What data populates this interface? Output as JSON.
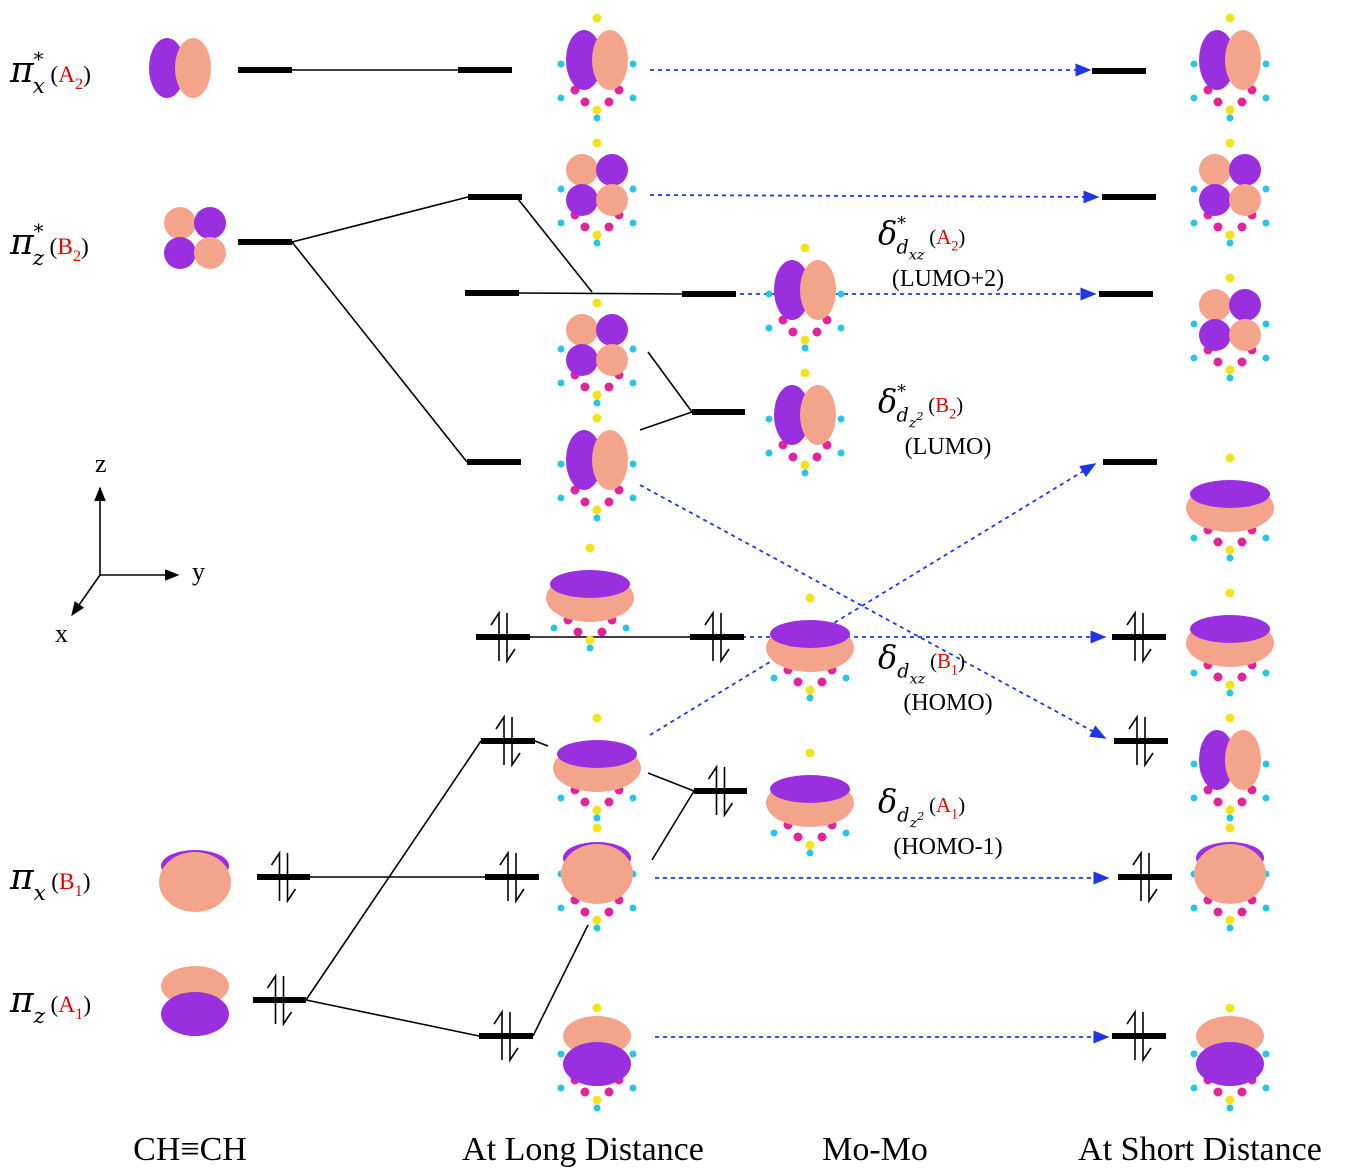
{
  "orbital_labels": [
    {
      "symbol": "π",
      "sup": "*",
      "sub": "x",
      "open": "(",
      "irrep": "A",
      "irrep_sub": "2",
      "close": ")"
    },
    {
      "symbol": "π",
      "sup": "*",
      "sub": "z",
      "open": "(",
      "irrep": "B",
      "irrep_sub": "2",
      "close": ")"
    },
    {
      "symbol": "π",
      "sub": "x",
      "open": "(",
      "irrep": "B",
      "irrep_sub": "1",
      "close": ")"
    },
    {
      "symbol": "π",
      "sub": "z",
      "open": "(",
      "irrep": "A",
      "irrep_sub": "1",
      "close": ")"
    }
  ],
  "mo_labels": [
    {
      "symbol": "δ",
      "sup": "*",
      "sub": "d",
      "sub_sub": "xz",
      "open": "(",
      "irrep": "A",
      "irrep_sub": "2",
      "close": ")",
      "note": "(LUMO+2)"
    },
    {
      "symbol": "δ",
      "sup": "*",
      "sub": "d",
      "sub_sub": "z",
      "sub_sub_sup": "2",
      "open": "(",
      "irrep": "B",
      "irrep_sub": "2",
      "close": ")",
      "note": "(LUMO)"
    },
    {
      "symbol": "δ",
      "sub": "d",
      "sub_sub": "xz",
      "open": "(",
      "irrep": "B",
      "irrep_sub": "1",
      "close": ")",
      "note": "(HOMO)"
    },
    {
      "symbol": "δ",
      "sub": "d",
      "sub_sub": "z",
      "sub_sub_sup": "2",
      "open": "(",
      "irrep": "A",
      "irrep_sub": "1",
      "close": ")",
      "note": "(HOMO-1)"
    }
  ],
  "axes": {
    "z": "z",
    "y": "y",
    "x": "x"
  },
  "columns": [
    "CH≡CH",
    "At Long Distance",
    "Mo-Mo",
    "At Short Distance"
  ]
}
